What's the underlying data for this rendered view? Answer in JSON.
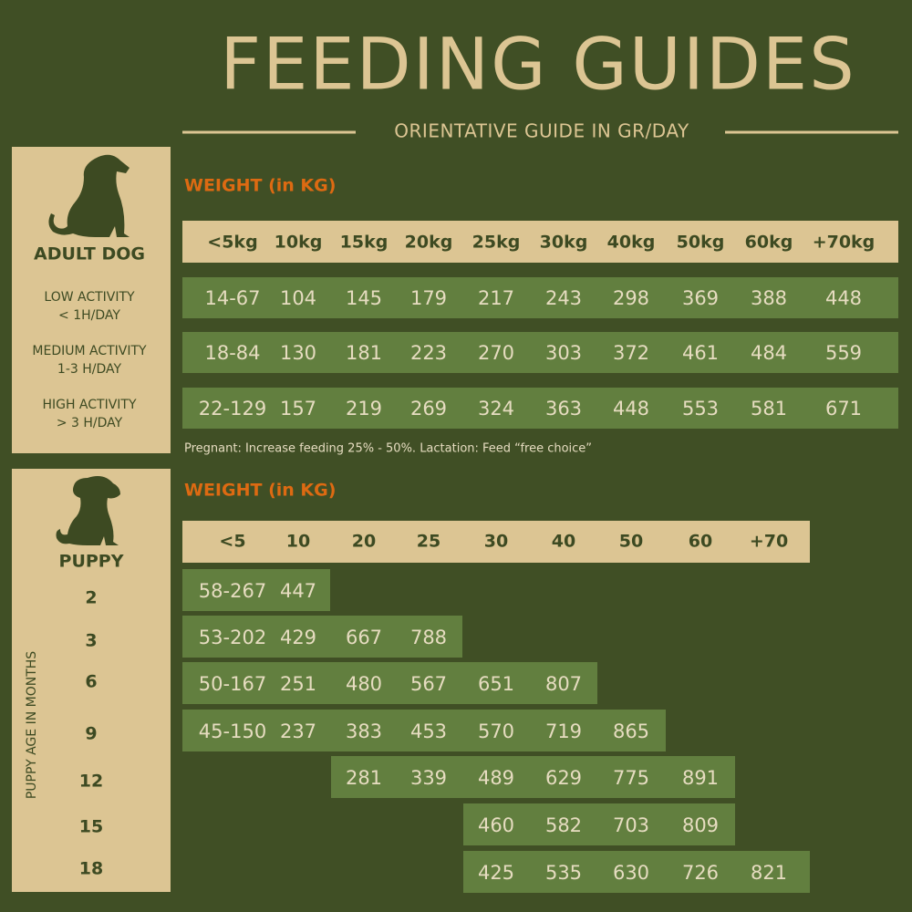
{
  "header": {
    "title": "FEEDING GUIDES",
    "subtitle": "ORIENTATIVE GUIDE IN GR/DAY"
  },
  "adult": {
    "label": "ADULT DOG",
    "weight_label": "WEIGHT (in KG)",
    "columns": [
      "<5kg",
      "10kg",
      "15kg",
      "20kg",
      "25kg",
      "30kg",
      "40kg",
      "50kg",
      "60kg",
      "+70kg"
    ],
    "rows": [
      {
        "activity": "LOW ACTIVITY",
        "duration": "< 1H/DAY",
        "values": [
          "14-67",
          104,
          145,
          179,
          217,
          243,
          298,
          369,
          388,
          448
        ]
      },
      {
        "activity": "MEDIUM ACTIVITY",
        "duration": "1-3 H/DAY",
        "values": [
          "18-84",
          130,
          181,
          223,
          270,
          303,
          372,
          461,
          484,
          559
        ]
      },
      {
        "activity": "HIGH ACTIVITY",
        "duration": "> 3 H/DAY",
        "values": [
          "22-129",
          157,
          219,
          269,
          324,
          363,
          448,
          553,
          581,
          671
        ]
      }
    ],
    "note": "Pregnant: Increase feeding 25% - 50%. Lactation: Feed “free choice”"
  },
  "puppy": {
    "label": "PUPPY",
    "axis_label": "PUPPY AGE IN MONTHS",
    "weight_label": "WEIGHT (in KG)",
    "columns": [
      "<5",
      "10",
      "20",
      "25",
      "30",
      "40",
      "50",
      "60",
      "+70"
    ],
    "rows": [
      {
        "age": 2,
        "values": [
          "58-267",
          447,
          null,
          null,
          null,
          null,
          null,
          null,
          null
        ]
      },
      {
        "age": 3,
        "values": [
          "53-202",
          429,
          667,
          788,
          null,
          null,
          null,
          null,
          null
        ]
      },
      {
        "age": 6,
        "values": [
          "50-167",
          251,
          480,
          567,
          651,
          807,
          null,
          null,
          null
        ]
      },
      {
        "age": 9,
        "values": [
          "45-150",
          237,
          383,
          453,
          570,
          719,
          865,
          null,
          null
        ]
      },
      {
        "age": 12,
        "values": [
          null,
          null,
          281,
          339,
          489,
          629,
          775,
          891,
          null
        ]
      },
      {
        "age": 15,
        "values": [
          null,
          null,
          null,
          null,
          460,
          582,
          703,
          809,
          null
        ]
      },
      {
        "age": 18,
        "values": [
          null,
          null,
          null,
          null,
          425,
          535,
          630,
          726,
          821
        ]
      }
    ]
  }
}
